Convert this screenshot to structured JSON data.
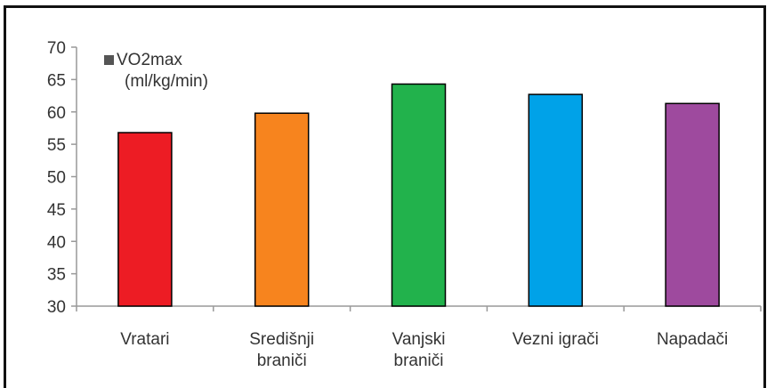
{
  "chart_data": {
    "type": "bar",
    "categories": [
      [
        "Vratari"
      ],
      [
        "Središnji",
        "braniči"
      ],
      [
        "Vanjski",
        "braniči"
      ],
      [
        "Vezni igrači"
      ],
      [
        "Napadači"
      ]
    ],
    "series": [
      {
        "name": "VO2max (ml/kg/min)",
        "values": [
          56.8,
          59.8,
          64.3,
          62.7,
          61.3
        ],
        "colors": [
          "#ed1c24",
          "#f7841e",
          "#22b24c",
          "#00a2e8",
          "#9e4a9e"
        ]
      }
    ],
    "legend": {
      "lines": [
        "VO2max",
        "(ml/kg/min)"
      ],
      "swatch_color": "#555555",
      "placement": "top-left"
    },
    "yticks": [
      30,
      35,
      40,
      45,
      50,
      55,
      60,
      65,
      70
    ],
    "ylim": [
      30,
      70
    ],
    "grid": false,
    "bar_edge_color": "#000000",
    "axis_color": "#999999"
  }
}
